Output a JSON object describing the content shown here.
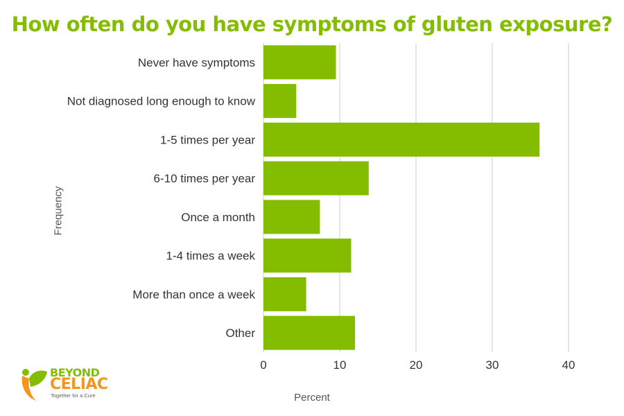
{
  "chart_data": {
    "type": "bar",
    "orientation": "horizontal",
    "title": "How often do you have symptoms of gluten exposure?",
    "xlabel": "Percent",
    "ylabel": "Frequency",
    "categories": [
      "Never have symptoms",
      "Not diagnosed long enough to know",
      "1-5 times per year",
      "6-10 times per year",
      "Once a month",
      "1-4 times a week",
      "More than once a week",
      "Other"
    ],
    "values": [
      9.5,
      4.3,
      36.2,
      13.8,
      7.4,
      11.5,
      5.6,
      12.0
    ],
    "xlim": [
      0,
      40
    ],
    "xticks": [
      0,
      10,
      20,
      30,
      40
    ],
    "grid": true,
    "legend": "none",
    "colors": {
      "bar": "#84BD00",
      "title": "#84BD00",
      "grid": "#cccccc",
      "text": "#333333"
    }
  },
  "logo": {
    "line1": "BEYOND",
    "line2": "CELIAC",
    "tagline": "Together for a Cure",
    "colors": {
      "green": "#84BD00",
      "orange": "#F7941D",
      "gray": "#5a5a5a"
    }
  }
}
